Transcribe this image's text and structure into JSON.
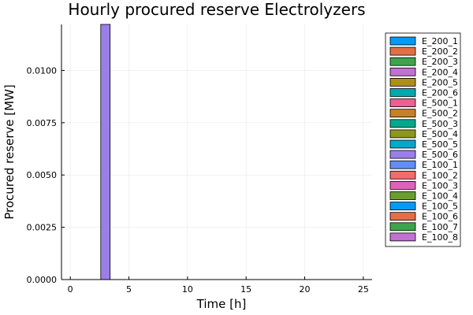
{
  "chart_data": {
    "type": "bar",
    "title": "Hourly procured reserve Electrolyzers",
    "xlabel": "Time [h]",
    "ylabel": "Procured reserve [MW]",
    "xlim": [
      -0.75,
      25.75
    ],
    "ylim": [
      0,
      0.0122
    ],
    "xticks": [
      0,
      5,
      10,
      15,
      20,
      25
    ],
    "yticks": [
      0.0,
      0.0025,
      0.005,
      0.0075,
      0.01
    ],
    "ytick_labels": [
      "0.0000",
      "0.0025",
      "0.0050",
      "0.0075",
      "0.0100"
    ],
    "x": [
      0,
      1,
      2,
      3,
      4,
      5,
      6,
      7,
      8,
      9,
      10,
      11,
      12,
      13,
      14,
      15,
      16,
      17,
      18,
      19,
      20,
      21,
      22,
      23,
      24,
      25
    ],
    "bar_width": 0.8,
    "grid": true,
    "legend_position": "outside-right-top",
    "series": [
      {
        "name": "E_200_1",
        "color": "#009af9",
        "values": [
          0,
          0,
          0,
          0,
          0,
          0,
          0,
          0,
          0,
          0,
          0,
          0,
          0,
          0,
          0,
          0,
          0,
          0,
          0,
          0,
          0,
          0,
          0,
          0,
          0,
          0
        ]
      },
      {
        "name": "E_200_2",
        "color": "#e26f46",
        "values": [
          0,
          0,
          0,
          0,
          0,
          0,
          0,
          0,
          0,
          0,
          0,
          0,
          0,
          0,
          0,
          0,
          0,
          0,
          0,
          0,
          0,
          0,
          0,
          0,
          0,
          0
        ]
      },
      {
        "name": "E_200_3",
        "color": "#3da44d",
        "values": [
          0,
          0,
          0,
          0,
          0,
          0,
          0,
          0,
          0,
          0,
          0,
          0,
          0,
          0,
          0,
          0,
          0,
          0,
          0,
          0,
          0,
          0,
          0,
          0,
          0,
          0
        ]
      },
      {
        "name": "E_200_4",
        "color": "#c271d2",
        "values": [
          0,
          0,
          0,
          0,
          0,
          0,
          0,
          0,
          0,
          0,
          0,
          0,
          0,
          0,
          0,
          0,
          0,
          0,
          0,
          0,
          0,
          0,
          0,
          0,
          0,
          0
        ]
      },
      {
        "name": "E_200_5",
        "color": "#ac8e18",
        "values": [
          0,
          0,
          0,
          0,
          0,
          0,
          0,
          0,
          0,
          0,
          0,
          0,
          0,
          0,
          0,
          0,
          0,
          0,
          0,
          0,
          0,
          0,
          0,
          0,
          0,
          0
        ]
      },
      {
        "name": "E_200_6",
        "color": "#00a9ad",
        "values": [
          0,
          0,
          0,
          0,
          0,
          0,
          0,
          0,
          0,
          0,
          0,
          0,
          0,
          0,
          0,
          0,
          0,
          0,
          0,
          0,
          0,
          0,
          0,
          0,
          0,
          0
        ]
      },
      {
        "name": "E_500_1",
        "color": "#ed5e93",
        "values": [
          0,
          0,
          0,
          0,
          0,
          0,
          0,
          0,
          0,
          0,
          0,
          0,
          0,
          0,
          0,
          0,
          0,
          0,
          0,
          0,
          0,
          0,
          0,
          0,
          0,
          0
        ]
      },
      {
        "name": "E_500_2",
        "color": "#c68125",
        "values": [
          0,
          0,
          0,
          0,
          0,
          0,
          0,
          0,
          0,
          0,
          0,
          0,
          0,
          0,
          0,
          0,
          0,
          0,
          0,
          0,
          0,
          0,
          0,
          0,
          0,
          0
        ]
      },
      {
        "name": "E_500_3",
        "color": "#00a98d",
        "values": [
          0,
          0,
          0,
          0,
          0,
          0,
          0,
          0,
          0,
          0,
          0,
          0,
          0,
          0,
          0,
          0,
          0,
          0,
          0,
          0,
          0,
          0,
          0,
          0,
          0,
          0
        ]
      },
      {
        "name": "E_500_4",
        "color": "#8e971d",
        "values": [
          0,
          0,
          0,
          0,
          0,
          0,
          0,
          0,
          0,
          0,
          0,
          0,
          0,
          0,
          0,
          0,
          0,
          0,
          0,
          0,
          0,
          0,
          0,
          0,
          0,
          0
        ]
      },
      {
        "name": "E_500_5",
        "color": "#00a8cb",
        "values": [
          0,
          0,
          0,
          0,
          0,
          0,
          0,
          0,
          0,
          0,
          0,
          0,
          0,
          0,
          0,
          0,
          0,
          0,
          0,
          0,
          0,
          0,
          0,
          0,
          0,
          0
        ]
      },
      {
        "name": "E_500_6",
        "color": "#9b7fe9",
        "values": [
          0,
          0,
          0,
          0.0122,
          0,
          0,
          0,
          0,
          0,
          0,
          0,
          0,
          0,
          0,
          0,
          0,
          0,
          0,
          0,
          0,
          0,
          0,
          0,
          0,
          0,
          0
        ]
      },
      {
        "name": "E_100_1",
        "color": "#618df6",
        "values": [
          0,
          0,
          0,
          0,
          0,
          0,
          0,
          0,
          0,
          0,
          0,
          0,
          0,
          0,
          0,
          0,
          0,
          0,
          0,
          0,
          0,
          0,
          0,
          0,
          0,
          0
        ]
      },
      {
        "name": "E_100_2",
        "color": "#f16c6b",
        "values": [
          0,
          0,
          0,
          0,
          0,
          0,
          0,
          0,
          0,
          0,
          0,
          0,
          0,
          0,
          0,
          0,
          0,
          0,
          0,
          0,
          0,
          0,
          0,
          0,
          0,
          0
        ]
      },
      {
        "name": "E_100_3",
        "color": "#dc63bc",
        "values": [
          0,
          0,
          0,
          0,
          0,
          0,
          0,
          0,
          0,
          0,
          0,
          0,
          0,
          0,
          0,
          0,
          0,
          0,
          0,
          0,
          0,
          0,
          0,
          0,
          0,
          0
        ]
      },
      {
        "name": "E_100_4",
        "color": "#6b9e32",
        "values": [
          0,
          0,
          0,
          0,
          0,
          0,
          0,
          0,
          0,
          0,
          0,
          0,
          0,
          0,
          0,
          0,
          0,
          0,
          0,
          0,
          0,
          0,
          0,
          0,
          0,
          0
        ]
      },
      {
        "name": "E_100_5",
        "color": "#009af9",
        "values": [
          0,
          0,
          0,
          0,
          0,
          0,
          0,
          0,
          0,
          0,
          0,
          0,
          0,
          0,
          0,
          0,
          0,
          0,
          0,
          0,
          0,
          0,
          0,
          0,
          0,
          0
        ]
      },
      {
        "name": "E_100_6",
        "color": "#e26f46",
        "values": [
          0,
          0,
          0,
          0,
          0,
          0,
          0,
          0,
          0,
          0,
          0,
          0,
          0,
          0,
          0,
          0,
          0,
          0,
          0,
          0,
          0,
          0,
          0,
          0,
          0,
          0
        ]
      },
      {
        "name": "E_100_7",
        "color": "#3da44d",
        "values": [
          0,
          0,
          0,
          0,
          0,
          0,
          0,
          0,
          0,
          0,
          0,
          0,
          0,
          0,
          0,
          0,
          0,
          0,
          0,
          0,
          0,
          0,
          0,
          0,
          0,
          0
        ]
      },
      {
        "name": "E_100_8",
        "color": "#c271d2",
        "values": [
          0,
          0,
          0,
          0,
          0,
          0,
          0,
          0,
          0,
          0,
          0,
          0,
          0,
          0,
          0,
          0,
          0,
          0,
          0,
          0,
          0,
          0,
          0,
          0,
          0,
          0
        ]
      }
    ]
  }
}
